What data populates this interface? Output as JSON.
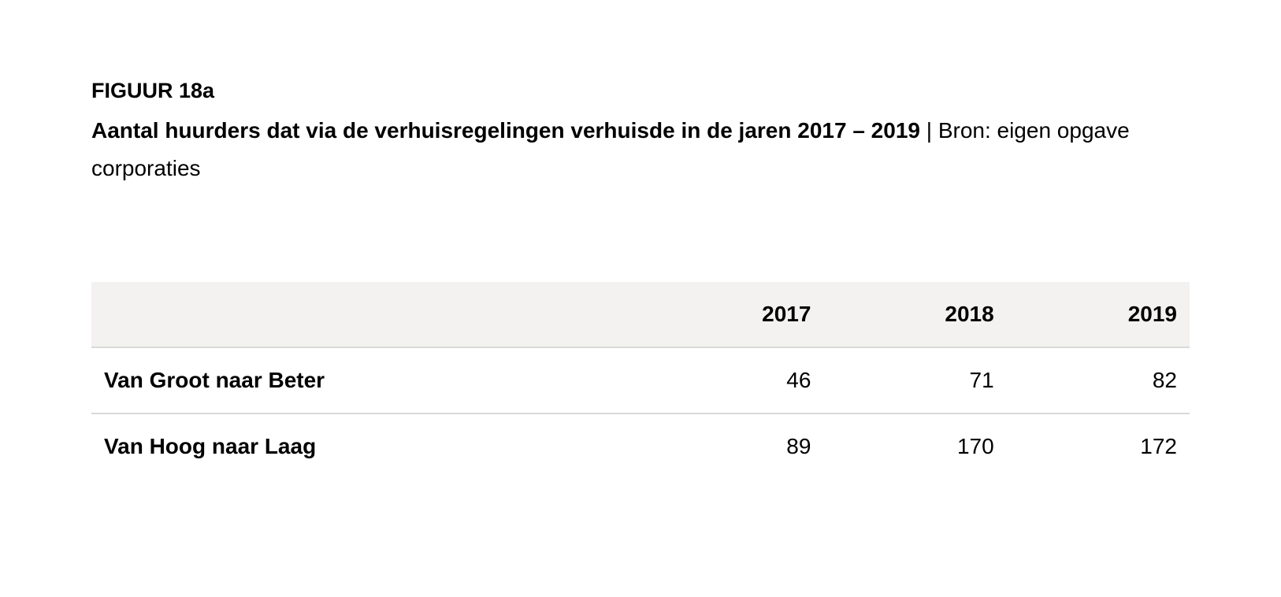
{
  "figure": {
    "label": "FIGUUR 18a",
    "title": "Aantal huurders dat via de verhuisregelingen verhuisde in de jaren 2017 – 2019",
    "separator": " | ",
    "source": "Bron: eigen opgave corporaties"
  },
  "chart_data": {
    "type": "table",
    "columns": [
      "2017",
      "2018",
      "2019"
    ],
    "rows": [
      {
        "label": "Van Groot naar Beter",
        "values": [
          "46",
          "71",
          "82"
        ]
      },
      {
        "label": "Van Hoog naar Laag",
        "values": [
          "89",
          "170",
          "172"
        ]
      }
    ]
  }
}
